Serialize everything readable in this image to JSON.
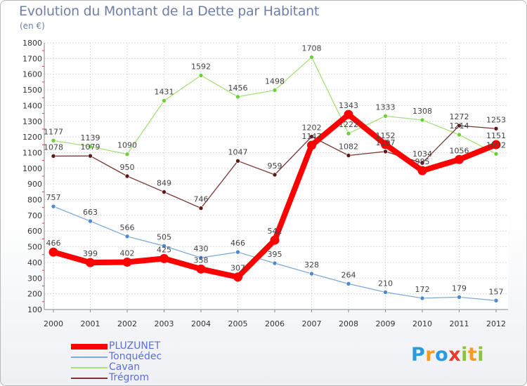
{
  "title": "Evolution du Montant de la Dette par Habitant",
  "subtitle": "(en €)",
  "brand": {
    "text": "Proxiti",
    "letters": [
      {
        "ch": "P",
        "color": "#2a9be0"
      },
      {
        "ch": "r",
        "color": "#f39c1f"
      },
      {
        "ch": "o",
        "color": "#2a9be0"
      },
      {
        "ch": "x",
        "color": "#e63a2e"
      },
      {
        "ch": "i",
        "color": "#8ec43d"
      },
      {
        "ch": "t",
        "color": "#f39c1f"
      },
      {
        "ch": "i",
        "color": "#8ec43d"
      }
    ]
  },
  "chart_data": {
    "type": "line",
    "title": "Evolution du Montant de la Dette par Habitant",
    "subtitle": "(en €)",
    "x": [
      "2000",
      "2001",
      "2002",
      "2003",
      "2004",
      "2005",
      "2006",
      "2007",
      "2008",
      "2009",
      "2010",
      "2011",
      "2012"
    ],
    "ylim": [
      100,
      1800
    ],
    "yticks": [
      100,
      200,
      300,
      400,
      500,
      600,
      700,
      800,
      900,
      1000,
      1100,
      1200,
      1300,
      1400,
      1500,
      1600,
      1700,
      1800
    ],
    "grid": true,
    "legend": "bottom-left",
    "series": [
      {
        "name": "PLUZUNET",
        "color": "#ff0000",
        "marker": "#ff0000",
        "width": 8,
        "values": [
          466,
          399,
          402,
          425,
          358,
          307,
          542,
          1147,
          1343,
          1152,
          985,
          1056,
          1151
        ],
        "labels": [
          "466",
          "399",
          "402",
          "425",
          "358",
          "307",
          "542",
          "1147",
          "1343",
          "1152",
          "985",
          "1056",
          "1151"
        ]
      },
      {
        "name": "Tonquédec",
        "color": "#7faad8",
        "marker": "#4d8ad0",
        "width": 1.3,
        "values": [
          757,
          663,
          566,
          505,
          430,
          466,
          395,
          328,
          264,
          210,
          172,
          179,
          157
        ],
        "labels": [
          "757",
          "663",
          "566",
          "505",
          "430",
          "466",
          "395",
          "328",
          "264",
          "210",
          "172",
          "179",
          "157"
        ]
      },
      {
        "name": "Cavan",
        "color": "#a6e07a",
        "marker": "#6fcf3a",
        "width": 1.3,
        "values": [
          1177,
          1139,
          1090,
          1431,
          1592,
          1456,
          1498,
          1708,
          1222,
          1333,
          1308,
          1214,
          1092
        ],
        "labels": [
          "1177",
          "1139",
          "1090",
          "1431",
          "1592",
          "1456",
          "1498",
          "1708",
          "1222",
          "1333",
          "1308",
          "1214",
          "1092"
        ]
      },
      {
        "name": "Trégrom",
        "color": "#7a3434",
        "marker": "#5a1a1a",
        "width": 1.3,
        "values": [
          1078,
          1079,
          950,
          849,
          746,
          1047,
          959,
          1202,
          1082,
          1107,
          1034,
          1272,
          1253
        ],
        "labels": [
          "1078",
          "1079",
          "950",
          "849",
          "746",
          "1047",
          "959",
          "1202",
          "1082",
          "1107",
          "1034",
          "1272",
          "1253"
        ]
      }
    ]
  }
}
